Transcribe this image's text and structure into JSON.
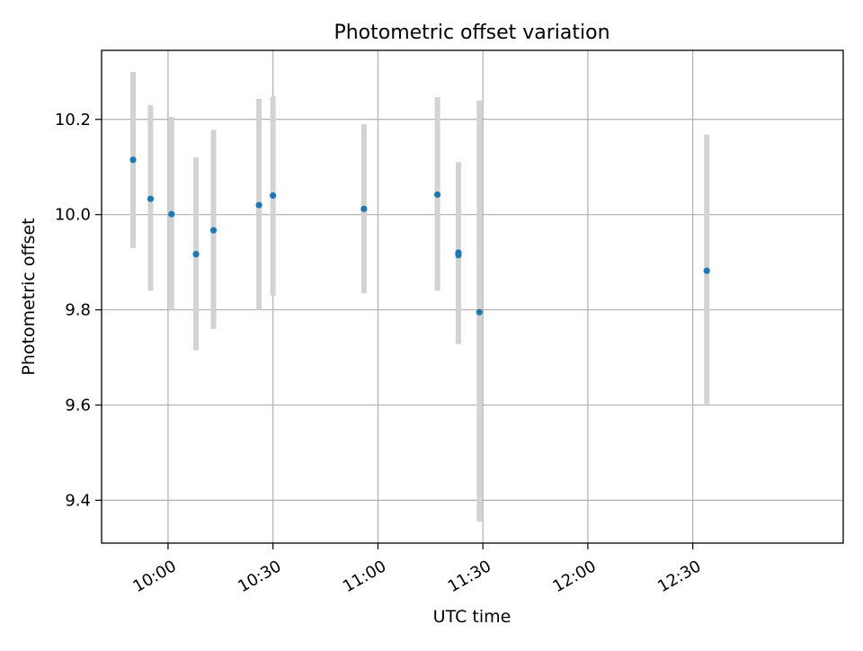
{
  "chart_data": {
    "type": "scatter",
    "title": "Photometric offset variation",
    "xlabel": "UTC time",
    "ylabel": "Photometric offset",
    "grid": true,
    "x_type": "time",
    "xlim": [
      "09:41",
      "13:13"
    ],
    "ylim": [
      9.31,
      10.345
    ],
    "x_ticks": [
      "10:00",
      "10:30",
      "11:00",
      "11:30",
      "12:00",
      "12:30"
    ],
    "y_ticks": [
      "9.4",
      "9.6",
      "9.8",
      "10.0",
      "10.2"
    ],
    "series": [
      {
        "points": [
          {
            "x": "09:50",
            "y": 10.115,
            "ylo": 9.93,
            "yhi": 10.3
          },
          {
            "x": "09:55",
            "y": 10.033,
            "ylo": 9.84,
            "yhi": 10.23
          },
          {
            "x": "10:01",
            "y": 10.001,
            "ylo": 9.8,
            "yhi": 10.205
          },
          {
            "x": "10:08",
            "y": 9.917,
            "ylo": 9.715,
            "yhi": 10.12
          },
          {
            "x": "10:13",
            "y": 9.967,
            "ylo": 9.76,
            "yhi": 10.178
          },
          {
            "x": "10:26",
            "y": 10.02,
            "ylo": 9.8,
            "yhi": 10.243
          },
          {
            "x": "10:30",
            "y": 10.04,
            "ylo": 9.83,
            "yhi": 10.248
          },
          {
            "x": "10:56",
            "y": 10.012,
            "ylo": 9.835,
            "yhi": 10.19
          },
          {
            "x": "11:17",
            "y": 10.042,
            "ylo": 9.84,
            "yhi": 10.247
          },
          {
            "x": "11:23",
            "y": 9.92,
            "ylo": 9.73,
            "yhi": 10.11
          },
          {
            "x": "11:23",
            "y": 9.915,
            "ylo": 9.728,
            "yhi": 10.105
          },
          {
            "x": "11:29",
            "y": 9.795,
            "ylo": 9.355,
            "yhi": 10.24
          },
          {
            "x": "12:34",
            "y": 9.882,
            "ylo": 9.6,
            "yhi": 10.168
          }
        ]
      }
    ],
    "colors": {
      "marker": "#1f77b4",
      "errorbar": "#d3d3d3",
      "grid": "#b0b0b0"
    }
  }
}
